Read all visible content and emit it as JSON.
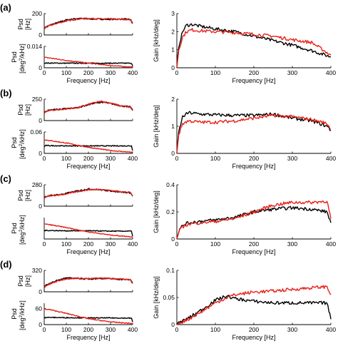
{
  "colors": {
    "series_a": "#000000",
    "series_b": "#e8211a"
  },
  "chart_data": [
    {
      "panel": "(a)",
      "psd_freq": {
        "type": "line",
        "ylabel": [
          "Psd",
          "[Hz]"
        ],
        "xlim": [
          0,
          400
        ],
        "ylim": [
          0,
          200
        ],
        "xticks": [
          "0",
          "100",
          "200",
          "300",
          "400"
        ],
        "yticks": [
          "0",
          "200"
        ],
        "series": [
          {
            "color": "#000000",
            "x": [
              0,
              5,
              15,
              30,
              60,
              100,
              150,
              200,
              250,
              300,
              350,
              390,
              400
            ],
            "y": [
              60,
              70,
              82,
              95,
              115,
              140,
              155,
              150,
              148,
              146,
              148,
              146,
              110
            ]
          },
          {
            "color": "#e8211a",
            "x": [
              0,
              5,
              15,
              30,
              60,
              100,
              150,
              200,
              250,
              300,
              350,
              390,
              400
            ],
            "y": [
              60,
              68,
              78,
              90,
              110,
              130,
              148,
              155,
              150,
              150,
              145,
              142,
              105
            ]
          }
        ]
      },
      "psd_phase": {
        "type": "line",
        "ylabel": [
          "Psd",
          "[deg²/kHz]"
        ],
        "xlim": [
          0,
          400
        ],
        "ylim": [
          0,
          0.014
        ],
        "xticks": [
          "0",
          "100",
          "200",
          "300",
          "400"
        ],
        "yticks": [
          "0",
          "0.014"
        ],
        "series": [
          {
            "color": "#000000",
            "x": [
              0,
              5,
              100,
              200,
              300,
              395,
              400
            ],
            "y": [
              0.0028,
              0.0031,
              0.003,
              0.003,
              0.003,
              0.003,
              0.0012
            ]
          },
          {
            "color": "#e8211a",
            "x": [
              0,
              25,
              100,
              200,
              300,
              400
            ],
            "y": [
              0.0068,
              0.0064,
              0.0048,
              0.003,
              0.0015,
              0.0004
            ]
          }
        ]
      },
      "gain": {
        "type": "line",
        "ylabel": "Gain [kHz/deg]",
        "xlabel": "Frequency [Hz]",
        "xlim": [
          0,
          400
        ],
        "ylim": [
          0,
          3
        ],
        "xticks": [
          "0",
          "100",
          "200",
          "300",
          "400"
        ],
        "yticks": [
          "0",
          "1",
          "2",
          "3"
        ],
        "series": [
          {
            "color": "#000000",
            "x": [
              0,
              5,
              15,
              25,
              40,
              60,
              100,
              150,
              200,
              250,
              300,
              350,
              400
            ],
            "y": [
              0,
              1.2,
              2.0,
              2.35,
              2.4,
              2.3,
              2.15,
              2.0,
              1.75,
              1.5,
              1.25,
              0.95,
              0.6
            ]
          },
          {
            "color": "#e8211a",
            "x": [
              0,
              5,
              15,
              25,
              40,
              60,
              100,
              150,
              200,
              250,
              300,
              350,
              400
            ],
            "y": [
              0,
              1.0,
              1.7,
              2.0,
              2.1,
              2.05,
              2.0,
              1.95,
              1.85,
              1.75,
              1.55,
              1.4,
              0.7
            ]
          }
        ]
      },
      "xlabel": "Frequency [Hz]"
    },
    {
      "panel": "(b)",
      "psd_freq": {
        "type": "line",
        "ylabel": [
          "Psd",
          "[Hz]"
        ],
        "xlim": [
          0,
          400
        ],
        "ylim": [
          0,
          250
        ],
        "xticks": [
          "0",
          "100",
          "200",
          "300",
          "400"
        ],
        "yticks": [
          "0",
          "250"
        ],
        "series": [
          {
            "color": "#000000",
            "x": [
              0,
              5,
              30,
              80,
              150,
              220,
              260,
              300,
              350,
              390,
              400
            ],
            "y": [
              80,
              110,
              125,
              135,
              150,
              200,
              215,
              200,
              170,
              160,
              120
            ]
          },
          {
            "color": "#e8211a",
            "x": [
              0,
              5,
              30,
              80,
              150,
              220,
              260,
              300,
              350,
              390,
              400
            ],
            "y": [
              80,
              105,
              120,
              130,
              150,
              205,
              225,
              205,
              170,
              155,
              115
            ]
          }
        ]
      },
      "psd_phase": {
        "type": "line",
        "ylabel": [
          "Psd",
          "[deg²/kHz]"
        ],
        "xlim": [
          0,
          400
        ],
        "ylim": [
          0,
          0.06
        ],
        "xticks": [
          "0",
          "100",
          "200",
          "300",
          "400"
        ],
        "yticks": [
          "0",
          "0.06"
        ],
        "series": [
          {
            "color": "#000000",
            "x": [
              0,
              5,
              100,
              200,
              300,
              395,
              400
            ],
            "y": [
              0.018,
              0.022,
              0.021,
              0.021,
              0.021,
              0.021,
              0.008
            ]
          },
          {
            "color": "#e8211a",
            "x": [
              0,
              25,
              100,
              150,
              200,
              300,
              400
            ],
            "y": [
              0.038,
              0.036,
              0.029,
              0.023,
              0.017,
              0.008,
              0.003
            ]
          }
        ]
      },
      "gain": {
        "type": "line",
        "ylabel": "Gain [kHz/deg]",
        "xlabel": "Frequency [Hz]",
        "xlim": [
          0,
          400
        ],
        "ylim": [
          0,
          2
        ],
        "xticks": [
          "0",
          "100",
          "200",
          "300",
          "400"
        ],
        "yticks": [
          "0",
          "1",
          "2"
        ],
        "series": [
          {
            "color": "#000000",
            "x": [
              0,
              5,
              15,
              30,
              60,
              100,
              150,
              200,
              250,
              300,
              350,
              390,
              400
            ],
            "y": [
              0,
              0.8,
              1.35,
              1.5,
              1.45,
              1.42,
              1.4,
              1.4,
              1.45,
              1.3,
              1.2,
              1.0,
              0.85
            ]
          },
          {
            "color": "#e8211a",
            "x": [
              0,
              5,
              15,
              30,
              60,
              100,
              150,
              200,
              250,
              300,
              350,
              390,
              400
            ],
            "y": [
              0,
              0.7,
              1.1,
              1.2,
              1.15,
              1.15,
              1.2,
              1.3,
              1.4,
              1.35,
              1.25,
              1.1,
              0.9
            ]
          }
        ]
      },
      "xlabel": "Frequency [Hz]"
    },
    {
      "panel": "(c)",
      "psd_freq": {
        "type": "line",
        "ylabel": [
          "Psd",
          "[Hz]"
        ],
        "xlim": [
          0,
          400
        ],
        "ylim": [
          0,
          280
        ],
        "xticks": [
          "0",
          "100",
          "200",
          "300",
          "400"
        ],
        "yticks": [
          "0",
          "280"
        ],
        "series": [
          {
            "color": "#000000",
            "x": [
              0,
              5,
              30,
              80,
              150,
              200,
              250,
              300,
              350,
              390,
              400
            ],
            "y": [
              100,
              125,
              140,
              155,
              200,
              225,
              215,
              200,
              185,
              175,
              130
            ]
          },
          {
            "color": "#e8211a",
            "x": [
              0,
              5,
              30,
              80,
              150,
              200,
              250,
              300,
              350,
              390,
              400
            ],
            "y": [
              100,
              120,
              135,
              150,
              190,
              215,
              220,
              205,
              190,
              180,
              135
            ]
          }
        ]
      },
      "psd_phase": {
        "type": "line",
        "ylabel": [
          "Psd",
          "[deg²/kHz]"
        ],
        "xlim": [
          0,
          400
        ],
        "ylim": [
          0,
          3
        ],
        "xticks": [
          "0",
          "100",
          "200",
          "300",
          "400"
        ],
        "yticks": [],
        "series": [
          {
            "color": "#000000",
            "x": [
              0,
              5,
              100,
              200,
              300,
              395,
              400
            ],
            "y": [
              1.1,
              1.2,
              1.15,
              1.15,
              1.1,
              1.1,
              0.4
            ]
          },
          {
            "color": "#e8211a",
            "x": [
              0,
              25,
              100,
              150,
              200,
              300,
              400
            ],
            "y": [
              2.1,
              2.0,
              1.6,
              1.3,
              1.0,
              0.55,
              0.3
            ]
          }
        ]
      },
      "gain": {
        "type": "line",
        "ylabel": "Gain [kHz/deg]",
        "xlabel": "Frequency [Hz]",
        "xlim": [
          0,
          400
        ],
        "ylim": [
          0,
          0.4
        ],
        "xticks": [
          "0",
          "100",
          "200",
          "300",
          "400"
        ],
        "yticks": [
          "0",
          "0.2",
          "0.4"
        ],
        "series": [
          {
            "color": "#000000",
            "x": [
              0,
              5,
              15,
              30,
              60,
              100,
              150,
              200,
              250,
              300,
              350,
              390,
              400
            ],
            "y": [
              0,
              0.06,
              0.1,
              0.12,
              0.13,
              0.14,
              0.16,
              0.2,
              0.22,
              0.23,
              0.22,
              0.2,
              0.12
            ]
          },
          {
            "color": "#e8211a",
            "x": [
              0,
              5,
              15,
              30,
              60,
              100,
              150,
              200,
              250,
              300,
              350,
              390,
              400
            ],
            "y": [
              0,
              0.05,
              0.09,
              0.11,
              0.12,
              0.13,
              0.15,
              0.2,
              0.25,
              0.27,
              0.27,
              0.28,
              0.15
            ]
          }
        ]
      },
      "xlabel": "Frequency [Hz]"
    },
    {
      "panel": "(d)",
      "psd_freq": {
        "type": "line",
        "ylabel": [
          "Psd",
          "[Hz]"
        ],
        "xlim": [
          0,
          400
        ],
        "ylim": [
          0,
          320
        ],
        "xticks": [
          "0",
          "100",
          "200",
          "300",
          "400"
        ],
        "yticks": [
          "0",
          "320"
        ],
        "series": [
          {
            "color": "#000000",
            "x": [
              0,
              5,
              30,
              60,
              100,
              150,
              200,
              250,
              300,
              350,
              390,
              400
            ],
            "y": [
              60,
              90,
              130,
              175,
              205,
              200,
              190,
              200,
              195,
              185,
              180,
              130
            ]
          },
          {
            "color": "#e8211a",
            "x": [
              0,
              5,
              30,
              60,
              100,
              150,
              200,
              250,
              300,
              350,
              390,
              400
            ],
            "y": [
              60,
              85,
              120,
              160,
              195,
              205,
              195,
              205,
              200,
              190,
              180,
              125
            ]
          }
        ]
      },
      "psd_phase": {
        "type": "line",
        "ylabel": [
          "Psd",
          "[deg²/kHz]"
        ],
        "xlim": [
          0,
          400
        ],
        "ylim": [
          0,
          80
        ],
        "xticks": [
          "0",
          "100",
          "200",
          "300",
          "400"
        ],
        "yticks": [
          "0",
          "60"
        ],
        "series": [
          {
            "color": "#000000",
            "x": [
              0,
              5,
              100,
              200,
              300,
              395,
              400
            ],
            "y": [
              24,
              27,
              26,
              25,
              25,
              24,
              10
            ]
          },
          {
            "color": "#e8211a",
            "x": [
              0,
              25,
              100,
              150,
              200,
              300,
              400
            ],
            "y": [
              58,
              56,
              42,
              32,
              22,
              10,
              4
            ]
          }
        ]
      },
      "gain": {
        "type": "line",
        "ylabel": "Gain [kHz/deg]",
        "xlabel": "Frequency [Hz]",
        "xlim": [
          0,
          400
        ],
        "ylim": [
          0,
          0.1
        ],
        "xticks": [
          "0",
          "100",
          "200",
          "300",
          "400"
        ],
        "yticks": [
          "0",
          "0.05",
          "0.1"
        ],
        "series": [
          {
            "color": "#000000",
            "x": [
              0,
              5,
              30,
              60,
              100,
              130,
              150,
              200,
              250,
              300,
              350,
              390,
              400
            ],
            "y": [
              0,
              0.003,
              0.012,
              0.025,
              0.045,
              0.053,
              0.048,
              0.043,
              0.04,
              0.04,
              0.04,
              0.04,
              0.01
            ]
          },
          {
            "color": "#e8211a",
            "x": [
              0,
              5,
              30,
              60,
              100,
              130,
              150,
              200,
              250,
              300,
              350,
              390,
              400
            ],
            "y": [
              0,
              0.002,
              0.01,
              0.022,
              0.04,
              0.05,
              0.055,
              0.06,
              0.062,
              0.065,
              0.068,
              0.07,
              0.055
            ]
          }
        ]
      },
      "xlabel": "Frequency [Hz]"
    }
  ]
}
